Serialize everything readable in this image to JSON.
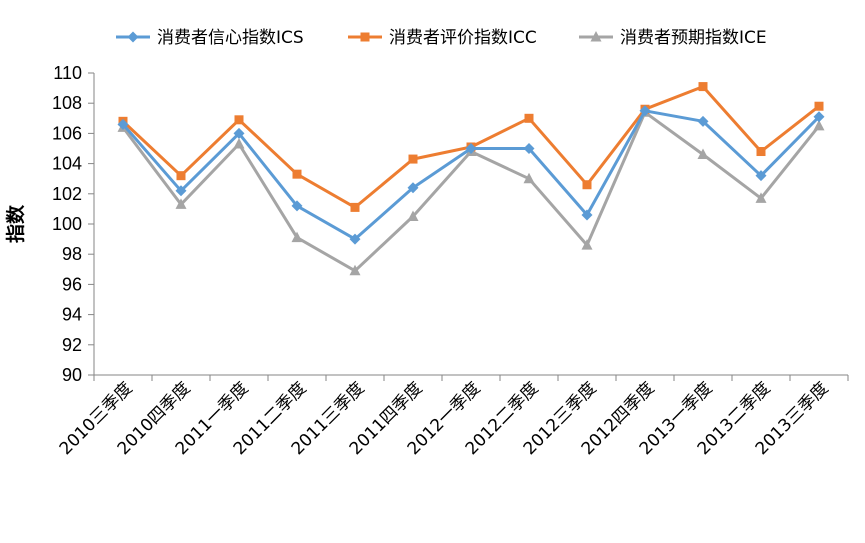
{
  "chart_data": {
    "type": "line",
    "ylabel": "指数",
    "ylim": [
      90,
      110
    ],
    "yticks": [
      90,
      92,
      94,
      96,
      98,
      100,
      102,
      104,
      106,
      108,
      110
    ],
    "grid": false,
    "legend_position": "top",
    "categories": [
      "2010三季度",
      "2010四季度",
      "2011一季度",
      "2011二季度",
      "2011三季度",
      "2011四季度",
      "2012一季度",
      "2012二季度",
      "2012三季度",
      "2012四季度",
      "2013一季度",
      "2013二季度",
      "2013三季度"
    ],
    "series": [
      {
        "name": "消费者信心指数ICS",
        "color": "#5B9BD5",
        "marker": "diamond",
        "values": [
          106.6,
          102.2,
          106.0,
          101.2,
          99.0,
          102.4,
          105.0,
          105.0,
          100.6,
          107.5,
          106.8,
          103.2,
          107.1
        ]
      },
      {
        "name": "消费者评价指数ICC",
        "color": "#ED7D31",
        "marker": "square",
        "values": [
          106.8,
          103.2,
          106.9,
          103.3,
          101.1,
          104.3,
          105.1,
          107.0,
          102.6,
          107.6,
          109.1,
          104.8,
          107.8
        ]
      },
      {
        "name": "消费者预期指数ICE",
        "color": "#A5A5A5",
        "marker": "triangle",
        "values": [
          106.4,
          101.3,
          105.3,
          99.1,
          96.9,
          100.5,
          104.8,
          103.0,
          98.6,
          107.4,
          104.6,
          101.7,
          106.5
        ]
      }
    ]
  }
}
